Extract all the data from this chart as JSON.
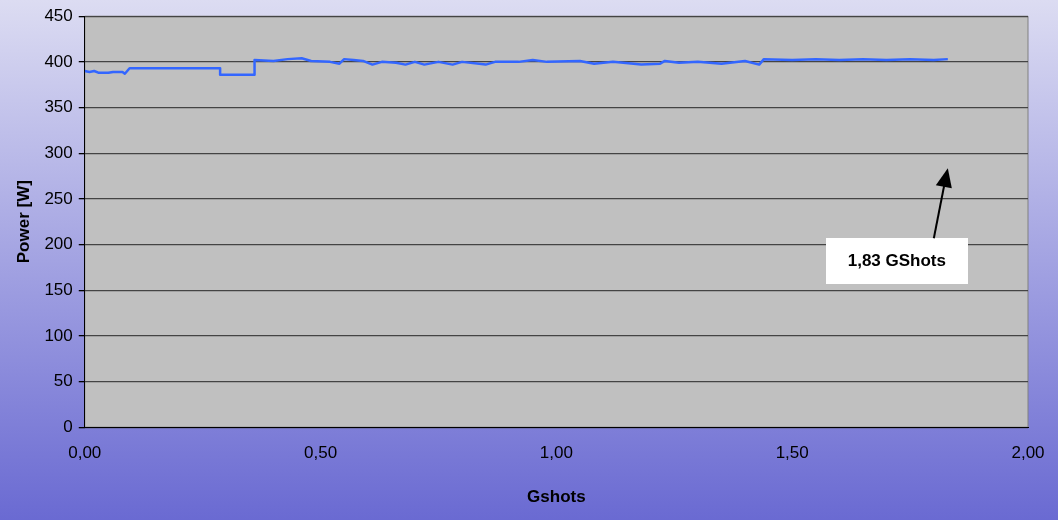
{
  "chart_data": {
    "type": "line",
    "xlabel": "Gshots",
    "ylabel": "Power [W]",
    "annotations": [
      "1,83 GShots"
    ],
    "x": [
      0,
      0.01,
      0.02,
      0.03,
      0.05,
      0.06,
      0.08,
      0.085,
      0.09,
      0.095,
      0.287,
      0.287,
      0.36,
      0.36,
      0.4,
      0.43,
      0.46,
      0.48,
      0.52,
      0.54,
      0.55,
      0.57,
      0.59,
      0.61,
      0.63,
      0.66,
      0.68,
      0.7,
      0.72,
      0.75,
      0.78,
      0.8,
      0.85,
      0.87,
      0.92,
      0.95,
      0.98,
      1.05,
      1.08,
      1.12,
      1.18,
      1.22,
      1.23,
      1.26,
      1.3,
      1.35,
      1.4,
      1.43,
      1.44,
      1.5,
      1.55,
      1.6,
      1.65,
      1.7,
      1.75,
      1.8,
      1.83
    ],
    "series": [
      {
        "color": "#3366ff",
        "values": [
          390,
          389,
          390,
          388,
          388,
          389,
          389,
          387,
          390,
          393,
          393,
          386,
          386,
          402,
          401,
          403,
          404,
          401,
          400,
          398,
          403,
          402,
          401,
          397,
          400,
          399,
          397,
          400,
          397,
          400,
          397,
          400,
          397,
          400,
          400,
          402,
          400,
          401,
          398,
          400,
          397,
          398,
          401,
          399,
          400,
          398,
          401,
          397,
          403,
          402,
          403,
          402,
          403,
          402,
          403,
          402,
          403
        ]
      }
    ],
    "xlim": [
      0,
      2
    ],
    "xticks": [
      {
        "value": 0,
        "label": "0,00"
      },
      {
        "value": 0.5,
        "label": "0,50"
      },
      {
        "value": 1,
        "label": "1,00"
      },
      {
        "value": 1.5,
        "label": "1,50"
      },
      {
        "value": 2,
        "label": "2,00"
      }
    ],
    "ylim": [
      0,
      450
    ],
    "yticks": [
      0,
      50,
      100,
      150,
      200,
      250,
      300,
      350,
      400,
      450
    ],
    "grid": "y",
    "legend": false,
    "marker": "none",
    "line_style": "solid"
  }
}
